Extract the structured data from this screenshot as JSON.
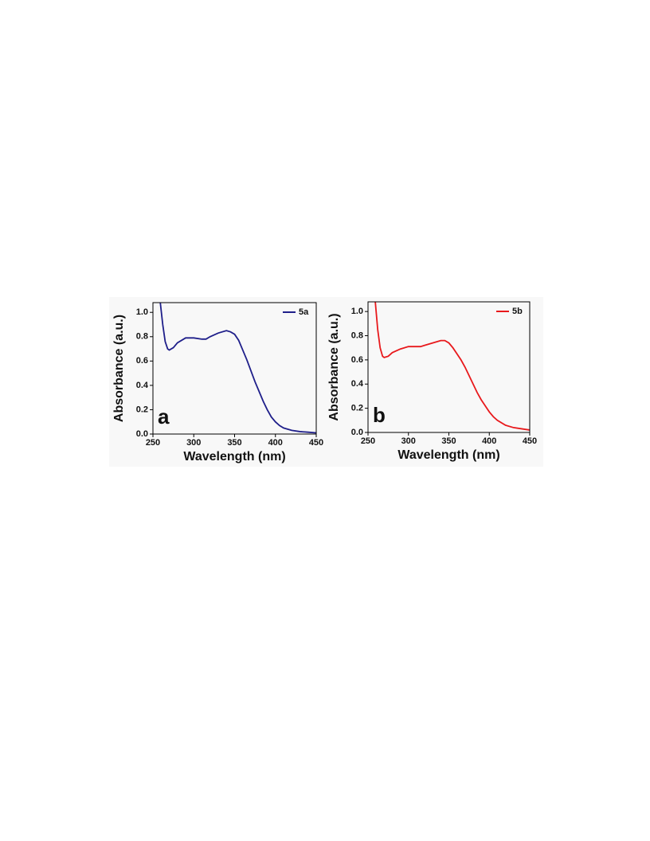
{
  "chart_data": [
    {
      "type": "line",
      "panel_label": "a",
      "xlabel": "Wavelength (nm)",
      "ylabel": "Absorbance (a.u.)",
      "x": [
        259,
        262,
        265,
        268,
        270,
        275,
        280,
        290,
        300,
        310,
        315,
        320,
        330,
        340,
        345,
        350,
        355,
        360,
        365,
        370,
        375,
        380,
        385,
        390,
        395,
        400,
        405,
        410,
        420,
        430,
        440,
        450
      ],
      "series": [
        {
          "name": "5a",
          "color": "#1f1f8a",
          "values": [
            1.08,
            0.9,
            0.76,
            0.7,
            0.69,
            0.71,
            0.75,
            0.79,
            0.79,
            0.78,
            0.78,
            0.8,
            0.83,
            0.85,
            0.84,
            0.82,
            0.77,
            0.69,
            0.61,
            0.52,
            0.43,
            0.35,
            0.27,
            0.2,
            0.14,
            0.1,
            0.07,
            0.05,
            0.03,
            0.02,
            0.015,
            0.01
          ]
        }
      ],
      "xlim": [
        250,
        450
      ],
      "ylim": [
        0,
        1.08
      ],
      "xticks": [
        250,
        300,
        350,
        400,
        450
      ],
      "yticks": [
        {
          "value": 0,
          "label": "0.0"
        },
        0.2,
        0.4,
        0.6,
        0.8,
        {
          "value": 1,
          "label": "1.0"
        }
      ],
      "legend": "upper right"
    },
    {
      "type": "line",
      "panel_label": "b",
      "xlabel": "Wavelength (nm)",
      "ylabel": "Absorbance (a.u.)",
      "x": [
        259,
        262,
        265,
        268,
        270,
        275,
        280,
        290,
        300,
        310,
        315,
        320,
        330,
        340,
        345,
        350,
        355,
        360,
        365,
        370,
        375,
        380,
        385,
        390,
        395,
        400,
        405,
        410,
        420,
        430,
        440,
        450
      ],
      "series": [
        {
          "name": "5b",
          "color": "#e8191c",
          "values": [
            1.08,
            0.85,
            0.7,
            0.63,
            0.62,
            0.63,
            0.66,
            0.69,
            0.71,
            0.71,
            0.71,
            0.72,
            0.74,
            0.76,
            0.76,
            0.74,
            0.7,
            0.65,
            0.6,
            0.54,
            0.47,
            0.4,
            0.33,
            0.27,
            0.22,
            0.17,
            0.13,
            0.1,
            0.06,
            0.04,
            0.03,
            0.02
          ]
        }
      ],
      "xlim": [
        250,
        450
      ],
      "ylim": [
        0,
        1.08
      ],
      "xticks": [
        250,
        300,
        350,
        400,
        450
      ],
      "yticks": [
        {
          "value": 0,
          "label": "0.0"
        },
        0.2,
        0.4,
        0.6,
        0.8,
        {
          "value": 1,
          "label": "1.0"
        }
      ],
      "legend": "upper right"
    }
  ]
}
